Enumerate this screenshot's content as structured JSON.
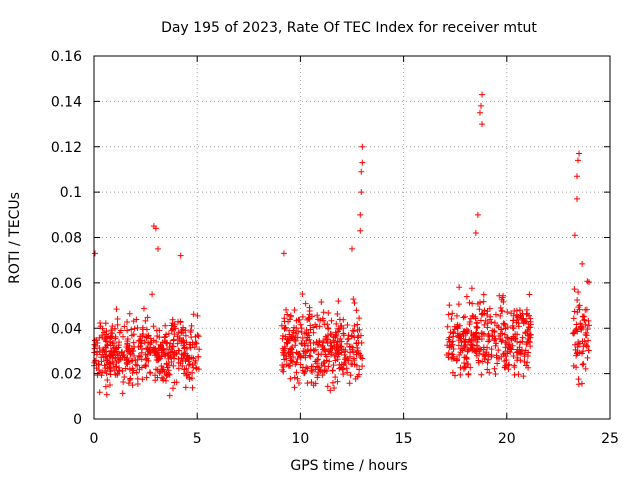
{
  "chart_data": {
    "type": "scatter",
    "title": "Day 195 of 2023, Rate Of TEC Index for receiver mtut",
    "xlabel": "GPS time / hours",
    "ylabel": "ROTI / TECUs",
    "xlim": [
      0,
      25
    ],
    "ylim": [
      0,
      0.16
    ],
    "xticks": [
      0,
      5,
      10,
      15,
      20,
      25
    ],
    "yticks": [
      0,
      0.02,
      0.04,
      0.06,
      0.08,
      0.1,
      0.12,
      0.14,
      0.16
    ],
    "xtick_labels": [
      "0",
      "5",
      "10",
      "15",
      "20",
      "25"
    ],
    "ytick_labels": [
      "0",
      "0.02",
      "0.04",
      "0.06",
      "0.08",
      "0.1",
      "0.12",
      "0.14",
      "0.16"
    ],
    "grid": true,
    "marker": "+",
    "color": "#ff0000",
    "segments": [
      {
        "start": 0.0,
        "end": 5.1,
        "min": 0.008,
        "max": 0.055,
        "outliers": [
          [
            0.05,
            0.073
          ],
          [
            2.9,
            0.085
          ],
          [
            3.0,
            0.084
          ],
          [
            3.1,
            0.075
          ],
          [
            4.2,
            0.072
          ]
        ]
      },
      {
        "start": 9.1,
        "end": 13.0,
        "min": 0.008,
        "max": 0.06,
        "outliers": [
          [
            9.2,
            0.073
          ],
          [
            12.5,
            0.075
          ],
          [
            12.9,
            0.083
          ],
          [
            12.9,
            0.09
          ],
          [
            12.95,
            0.1
          ],
          [
            12.95,
            0.109
          ],
          [
            13.0,
            0.113
          ],
          [
            13.0,
            0.12
          ]
        ]
      },
      {
        "start": 17.1,
        "end": 21.2,
        "min": 0.01,
        "max": 0.065,
        "outliers": [
          [
            18.5,
            0.082
          ],
          [
            18.6,
            0.09
          ],
          [
            18.7,
            0.135
          ],
          [
            18.75,
            0.138
          ],
          [
            18.8,
            0.143
          ],
          [
            18.8,
            0.13
          ]
        ]
      },
      {
        "start": 23.2,
        "end": 24.0,
        "min": 0.008,
        "max": 0.07,
        "outliers": [
          [
            23.3,
            0.081
          ],
          [
            23.4,
            0.097
          ],
          [
            23.4,
            0.107
          ],
          [
            23.45,
            0.114
          ],
          [
            23.5,
            0.117
          ]
        ]
      }
    ]
  }
}
